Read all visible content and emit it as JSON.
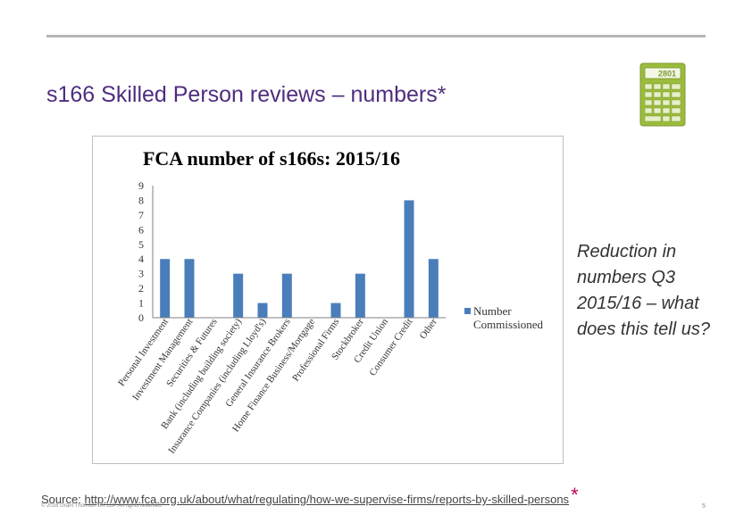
{
  "slide": {
    "title": "s166 Skilled Person reviews – numbers*",
    "side_note": "Reduction in numbers Q3 2015/16 – what does this tell us?",
    "source_label": "Source:",
    "source_url": "http://www.fca.org.uk/about/what/regulating/how-we-supervise-firms/reports-by-skilled-persons",
    "asterisk": "*",
    "copyright": "© 2016 Grant Thornton UK LLP. All rights reserved.",
    "page_number": "5"
  },
  "calculator": {
    "display": "2801"
  },
  "colors": {
    "title": "#4f2d7f",
    "bar": "#4a7ebb",
    "calculator": "#9bbb3c",
    "asterisk": "#c0005a"
  },
  "chart_data": {
    "type": "bar",
    "title": "FCA number of  s166s: 2015/16",
    "categories": [
      "Personal Investment",
      "Investment Management",
      "Securities & Futures",
      "Bank (including building society)",
      "Insurance Companies (including Lloyd's)",
      "General Insurance Brokers",
      "Home Finance Business/Mortgage",
      "Professional Firms",
      "Stockbroker",
      "Credit Union",
      "Consumer Credit",
      "Other"
    ],
    "series": [
      {
        "name": "Number Commissioned",
        "values": [
          4,
          4,
          0,
          3,
          1,
          3,
          0,
          1,
          3,
          0,
          8,
          4
        ]
      }
    ],
    "ylim": [
      0,
      9
    ],
    "yticks": [
      "0",
      "1",
      "2",
      "3",
      "4",
      "5",
      "6",
      "7",
      "8",
      "9"
    ],
    "legend_position": "right",
    "grid": false
  }
}
